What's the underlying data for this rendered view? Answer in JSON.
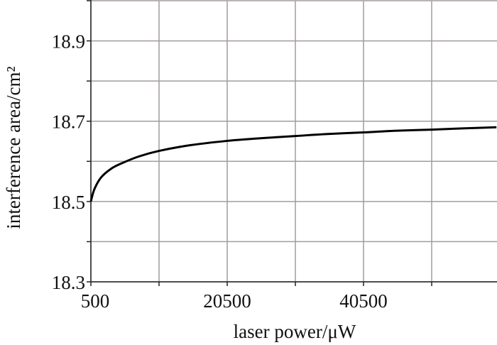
{
  "chart_data": {
    "type": "line",
    "title": "",
    "xlabel": "laser power/μW",
    "ylabel": "interference area/cm²",
    "xlim": [
      500,
      60500
    ],
    "ylim": [
      18.3,
      19.0
    ],
    "x_ticks": [
      500,
      10500,
      20500,
      30500,
      40500,
      50500,
      60500
    ],
    "x_tick_labels": [
      "500",
      "",
      "20500",
      "",
      "40500",
      "",
      ""
    ],
    "y_ticks": [
      18.3,
      18.4,
      18.5,
      18.6,
      18.7,
      18.8,
      18.9,
      19.0
    ],
    "y_tick_labels": [
      "18.3",
      "",
      "18.5",
      "",
      "18.7",
      "",
      "18.9",
      ""
    ],
    "grid": true,
    "line_color": "#000000",
    "grid_color": "#a39c9c",
    "series": [
      {
        "x": [
          500,
          1000,
          2000,
          3500,
          5000,
          7500,
          10500,
          15000,
          20500,
          25000,
          30500,
          35000,
          40500,
          45000,
          50500,
          55000,
          60000
        ],
        "y": [
          18.5,
          18.53,
          18.56,
          18.582,
          18.595,
          18.612,
          18.626,
          18.64,
          18.651,
          18.657,
          18.663,
          18.668,
          18.672,
          18.676,
          18.679,
          18.682,
          18.685
        ]
      }
    ]
  }
}
